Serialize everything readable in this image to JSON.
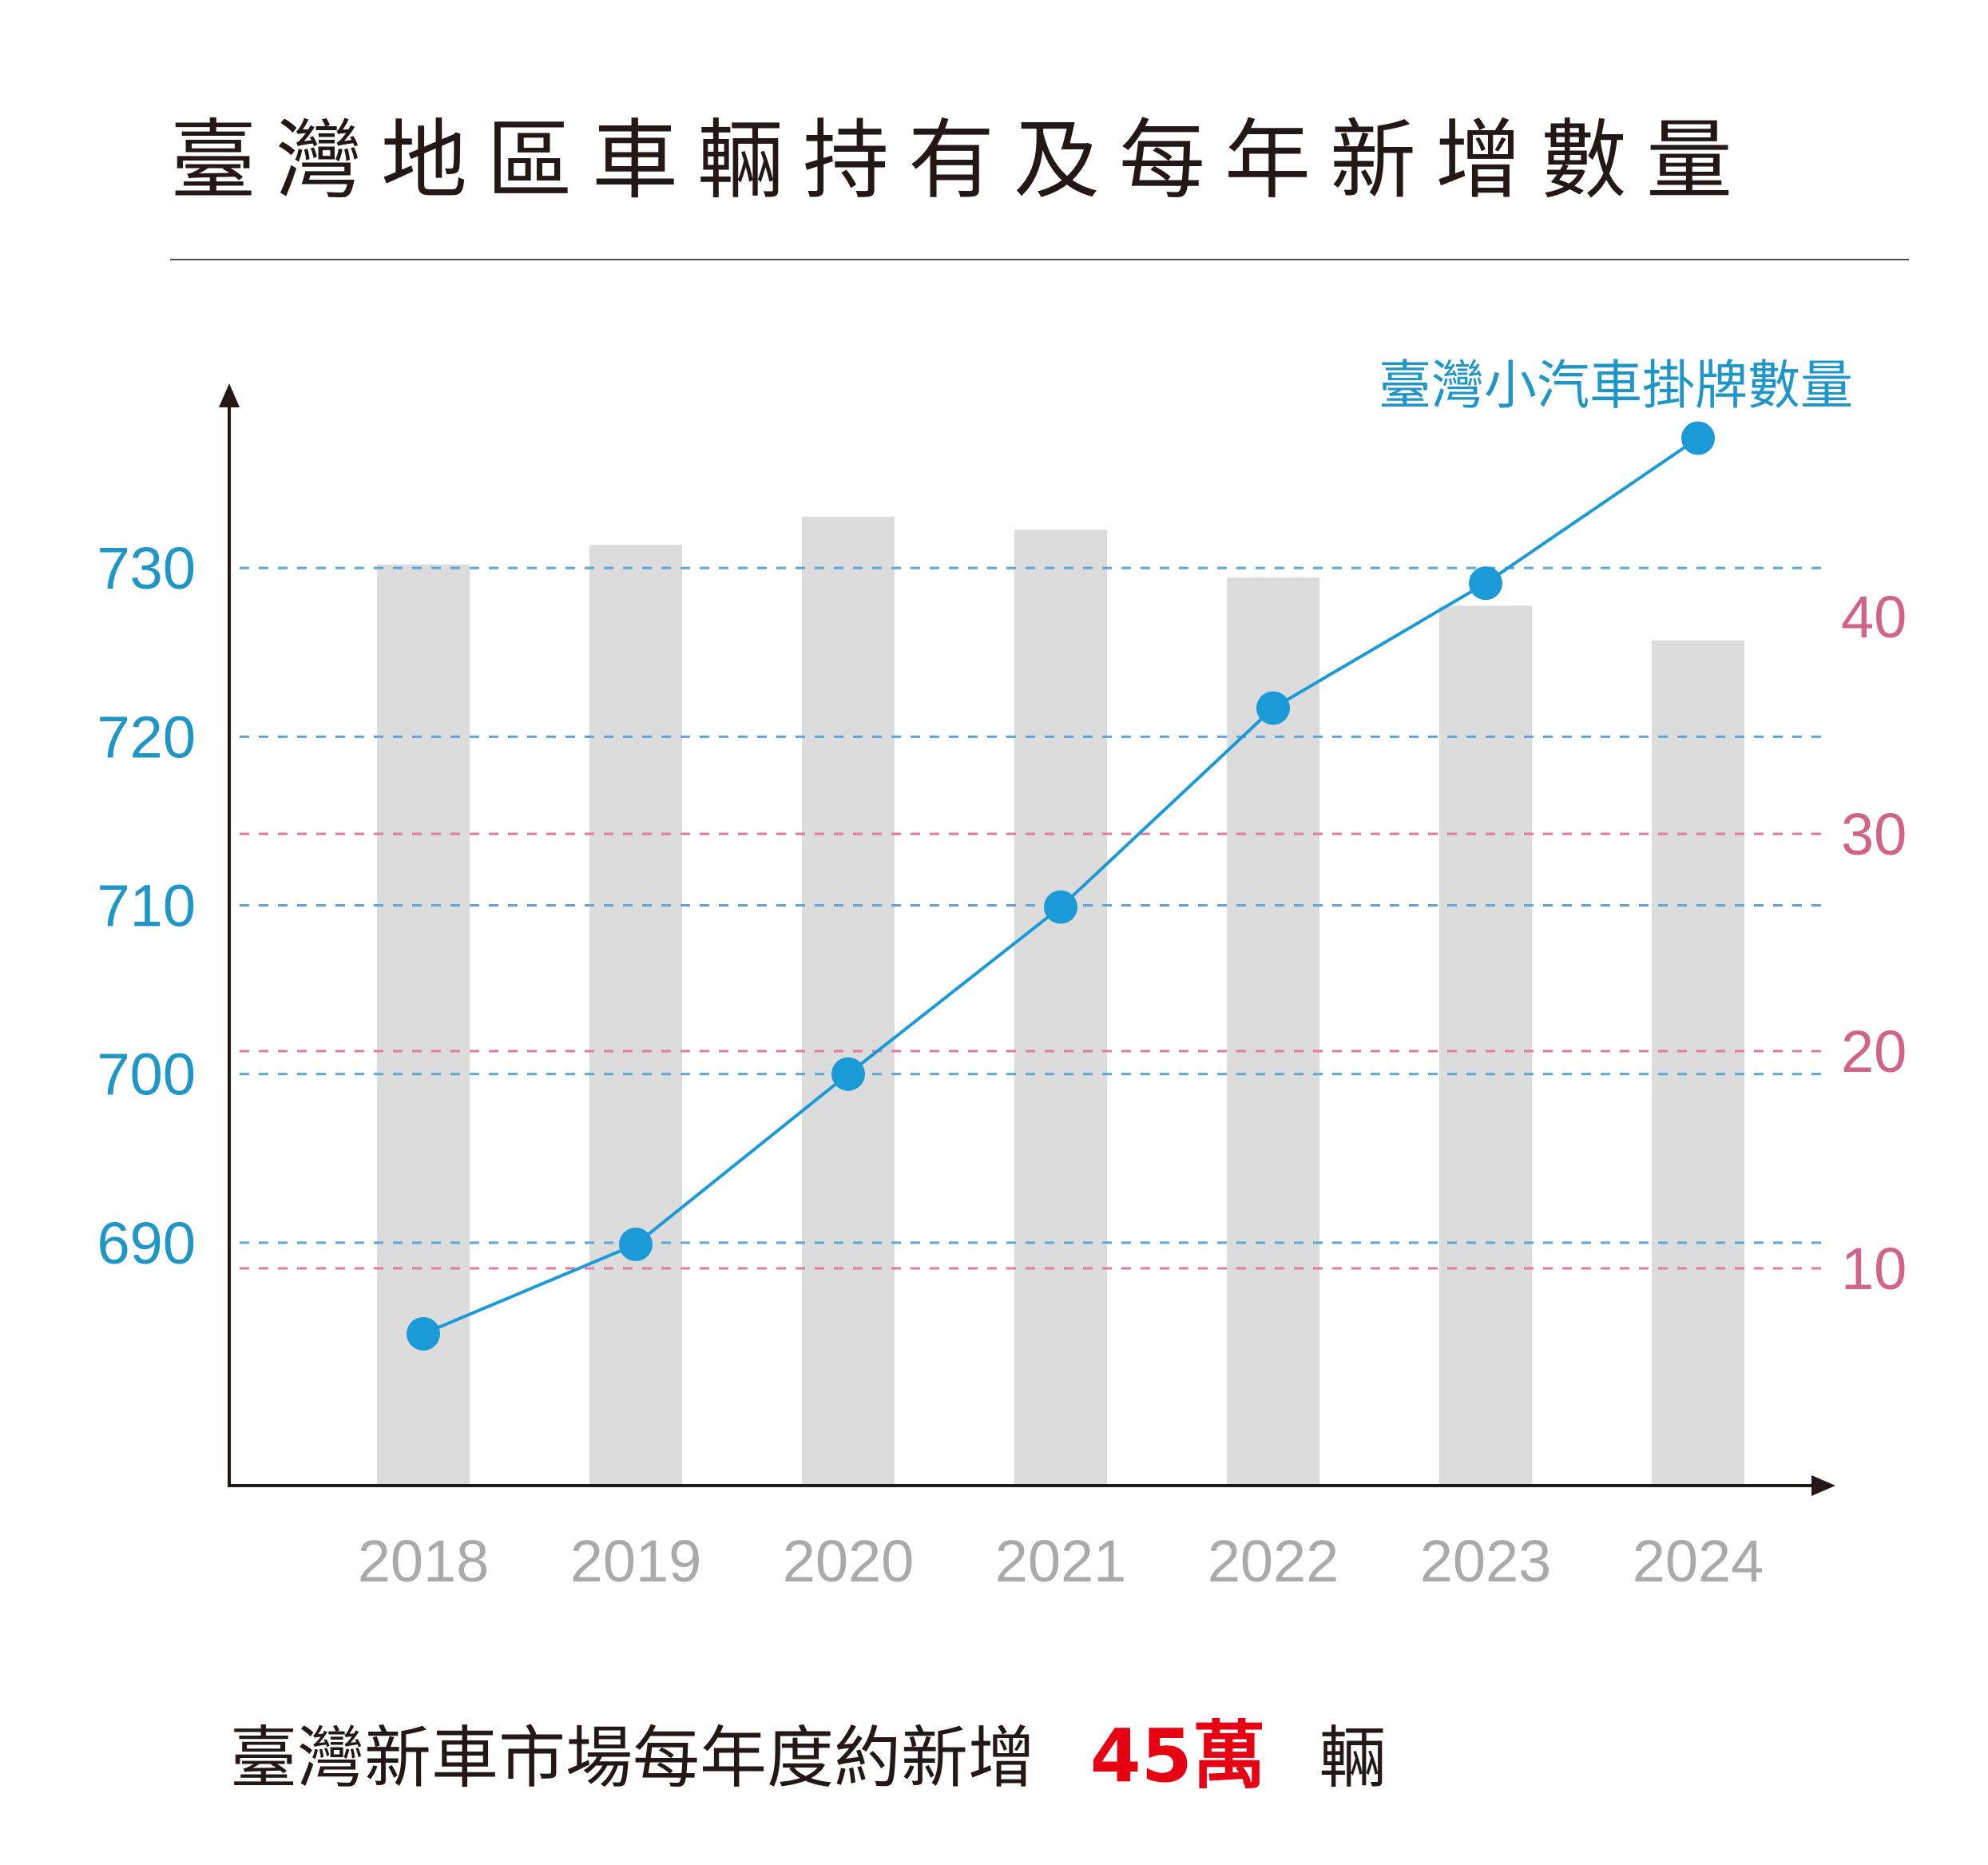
{
  "title": "臺灣地區車輛持有及每年新增數量",
  "footnote": {
    "prefix": "臺灣新車市場每年度約新增",
    "highlight": "45萬",
    "suffix": "輛"
  },
  "colors": {
    "line": "#1b9ad8",
    "left_axis_text": "#1f96c8",
    "right_axis_text": "#d1628a",
    "bar": "#dcdcdc",
    "blue_grid": "#5aa8d6",
    "pink_grid": "#e07d9f",
    "axis": "#231815",
    "year_text": "#aaaaaa",
    "highlight": "#e60012"
  },
  "chart_data": {
    "type": "bar+line",
    "categories": [
      "2018",
      "2019",
      "2020",
      "2021",
      "2022",
      "2023",
      "2024"
    ],
    "line_series": {
      "name": "臺灣小汽車掛牌數量",
      "axis": "left",
      "values": [
        684.6,
        689.9,
        700.0,
        709.9,
        721.7,
        729.1,
        737.7
      ]
    },
    "bar_series": {
      "axis": "right",
      "values": [
        42.4,
        43.3,
        44.6,
        44.0,
        41.8,
        40.5,
        38.9
      ]
    },
    "left_axis": {
      "ticks": [
        "690",
        "700",
        "710",
        "720",
        "730"
      ],
      "ylim": [
        675.6,
        740.0
      ]
    },
    "right_axis": {
      "ticks": [
        "10",
        "20",
        "30",
        "40"
      ],
      "ylim": [
        0,
        50
      ]
    },
    "grid": "dashed"
  }
}
